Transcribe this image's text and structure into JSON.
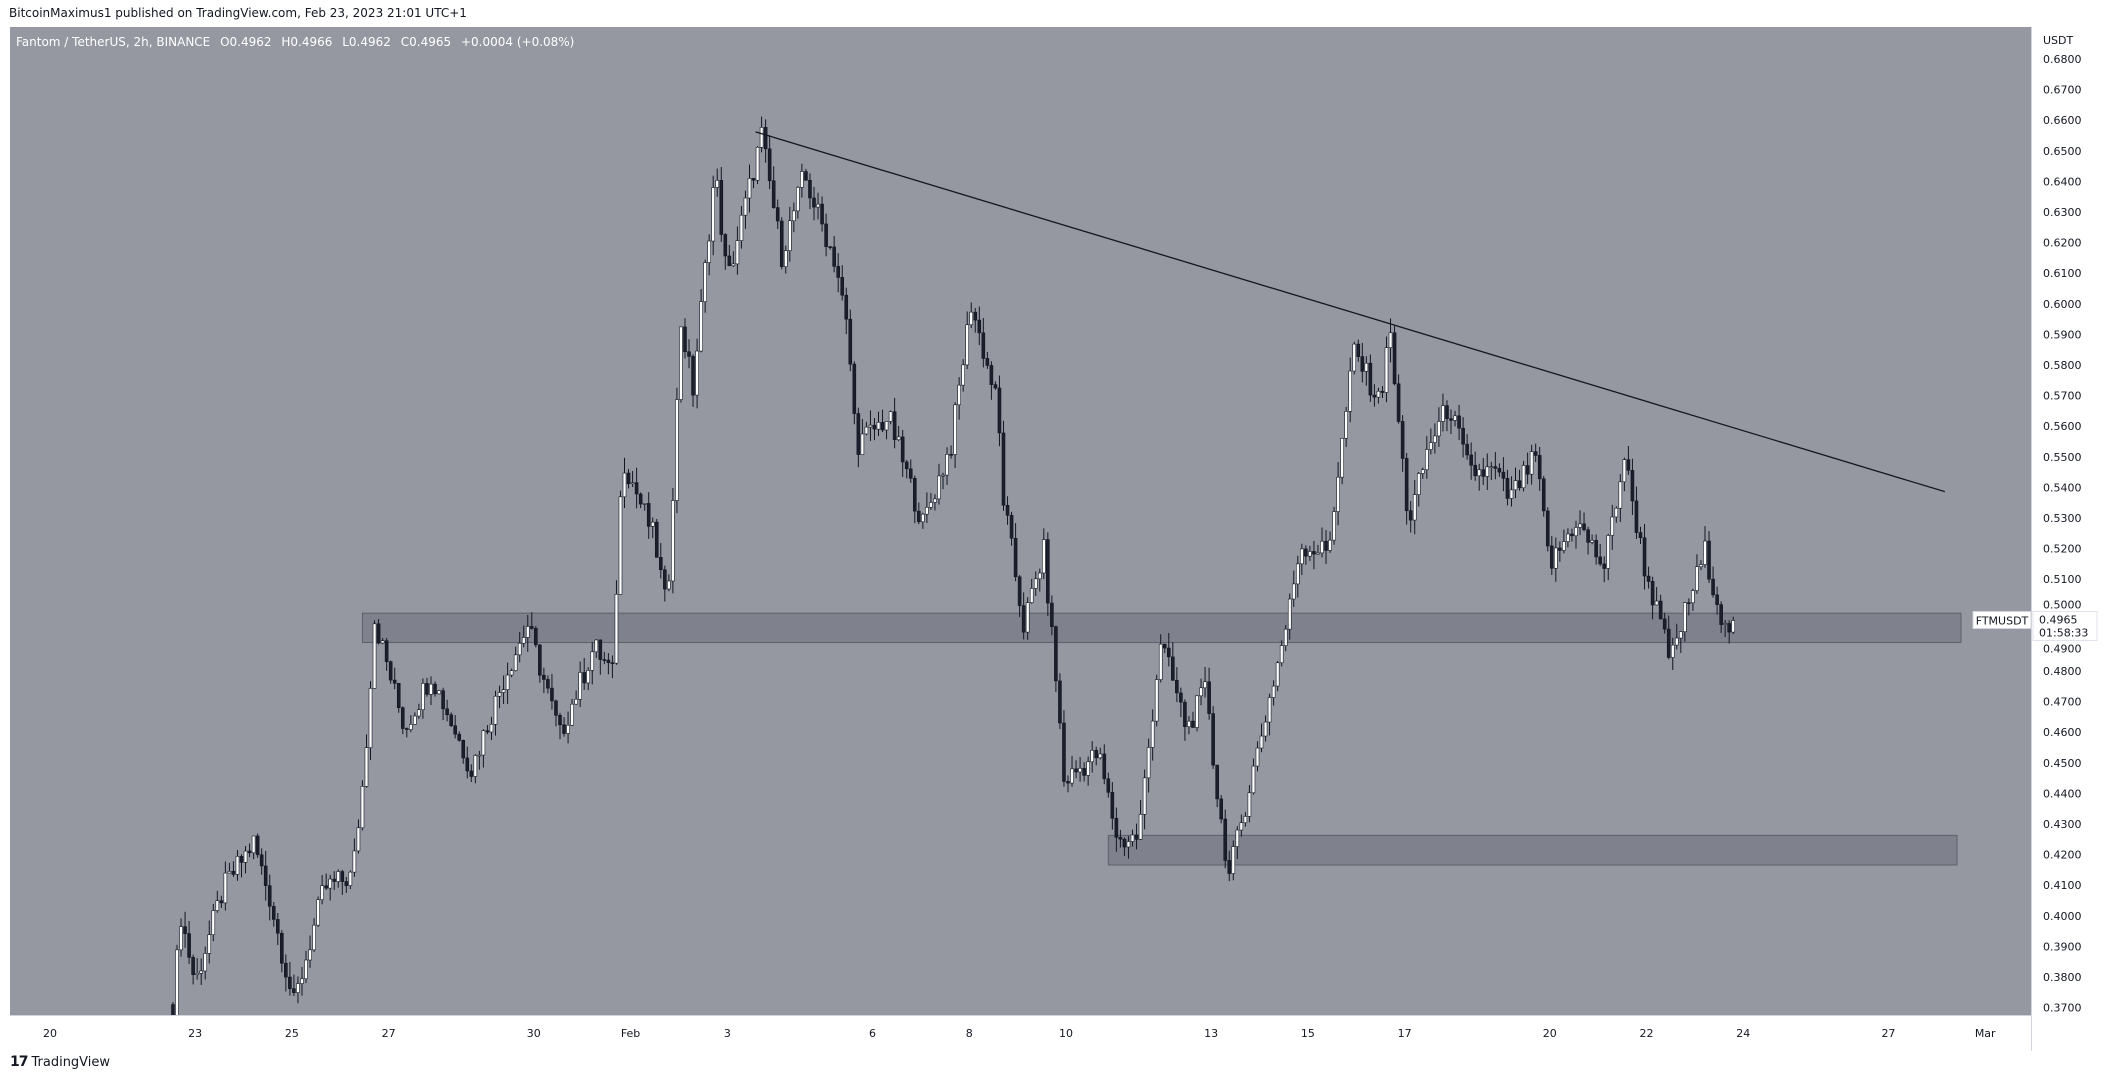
{
  "header": {
    "published": "BitcoinMaximus1 published on TradingView.com, Feb 23, 2023 21:01 UTC+1"
  },
  "legend": {
    "symbol": "Fantom / TetherUS, 2h, BINANCE",
    "o_label": "O",
    "o": "0.4962",
    "h_label": "H",
    "h": "0.4966",
    "l_label": "L",
    "l": "0.4962",
    "c_label": "C",
    "c": "0.4965",
    "change": "+0.0004 (+0.08%)"
  },
  "price_label": {
    "ticker": "FTMUSDT",
    "price": "0.4965",
    "countdown": "01:58:33"
  },
  "footer": {
    "logo_text": "TradingView"
  },
  "colors": {
    "background": "#9598a1",
    "up_fill": "#ffffff",
    "down_fill": "#1b1e2b",
    "candle_border": "#131722",
    "zone": "#787b86",
    "axis_bg": "#ffffff"
  },
  "chart_data": {
    "type": "candlestick",
    "interval": "2h",
    "currency": "USDT",
    "ylim": [
      0.365,
      0.6835
    ],
    "y_ticks": [
      "0.6800",
      "0.6700",
      "0.6600",
      "0.6500",
      "0.6400",
      "0.6300",
      "0.6200",
      "0.6100",
      "0.6000",
      "0.5900",
      "0.5800",
      "0.5700",
      "0.5600",
      "0.5500",
      "0.5400",
      "0.5300",
      "0.5200",
      "0.5100",
      "0.5000",
      "0.4900",
      "0.4800",
      "0.4700",
      "0.4600",
      "0.4500",
      "0.4400",
      "0.4300",
      "0.4200",
      "0.4100",
      "0.4000",
      "0.3900",
      "0.3800",
      "0.3700"
    ],
    "x_ticks": [
      {
        "label": "20",
        "date": "2023-01-20"
      },
      {
        "label": "23",
        "date": "2023-01-23"
      },
      {
        "label": "25",
        "date": "2023-01-25"
      },
      {
        "label": "27",
        "date": "2023-01-27"
      },
      {
        "label": "30",
        "date": "2023-01-30"
      },
      {
        "label": "Feb",
        "date": "2023-02-01"
      },
      {
        "label": "3",
        "date": "2023-02-03"
      },
      {
        "label": "6",
        "date": "2023-02-06"
      },
      {
        "label": "8",
        "date": "2023-02-08"
      },
      {
        "label": "10",
        "date": "2023-02-10"
      },
      {
        "label": "13",
        "date": "2023-02-13"
      },
      {
        "label": "15",
        "date": "2023-02-15"
      },
      {
        "label": "17",
        "date": "2023-02-17"
      },
      {
        "label": "20",
        "date": "2023-02-20"
      },
      {
        "label": "22",
        "date": "2023-02-22"
      },
      {
        "label": "24",
        "date": "2023-02-24"
      },
      {
        "label": "27",
        "date": "2023-02-27"
      },
      {
        "label": "Mar",
        "date": "2023-03-01"
      }
    ],
    "price_path": [
      [
        "2023-01-22T13",
        0.371
      ],
      [
        "2023-01-22T17",
        0.4
      ],
      [
        "2023-01-23T00",
        0.378
      ],
      [
        "2023-01-23T14",
        0.409
      ],
      [
        "2023-01-24T05",
        0.424
      ],
      [
        "2023-01-24T13",
        0.406
      ],
      [
        "2023-01-25T01",
        0.371
      ],
      [
        "2023-01-25T16",
        0.409
      ],
      [
        "2023-01-26T06",
        0.413
      ],
      [
        "2023-01-26T12",
        0.448
      ],
      [
        "2023-01-26T17",
        0.497
      ],
      [
        "2023-01-27T08",
        0.461
      ],
      [
        "2023-01-27T21",
        0.479
      ],
      [
        "2023-01-28T17",
        0.448
      ],
      [
        "2023-01-29T10",
        0.479
      ],
      [
        "2023-01-29T21",
        0.495
      ],
      [
        "2023-01-30T13",
        0.459
      ],
      [
        "2023-01-31T06",
        0.488
      ],
      [
        "2023-01-31T15",
        0.479
      ],
      [
        "2023-01-31T20",
        0.55
      ],
      [
        "2023-02-01T12",
        0.523
      ],
      [
        "2023-02-01T18",
        0.499
      ],
      [
        "2023-02-02T01",
        0.594
      ],
      [
        "2023-02-02T07",
        0.572
      ],
      [
        "2023-02-02T18",
        0.644
      ],
      [
        "2023-02-03T00",
        0.607
      ],
      [
        "2023-02-03T17",
        0.655
      ],
      [
        "2023-02-04T03",
        0.616
      ],
      [
        "2023-02-04T14",
        0.642
      ],
      [
        "2023-02-05T06",
        0.613
      ],
      [
        "2023-02-05T12",
        0.589
      ],
      [
        "2023-02-05T16",
        0.554
      ],
      [
        "2023-02-06T08",
        0.563
      ],
      [
        "2023-02-07T01",
        0.528
      ],
      [
        "2023-02-07T15",
        0.554
      ],
      [
        "2023-02-08T01",
        0.6
      ],
      [
        "2023-02-08T14",
        0.567
      ],
      [
        "2023-02-08T17",
        0.536
      ],
      [
        "2023-02-09T03",
        0.495
      ],
      [
        "2023-02-09T13",
        0.519
      ],
      [
        "2023-02-09T20",
        0.471
      ],
      [
        "2023-02-09T23",
        0.444
      ],
      [
        "2023-02-10T16",
        0.453
      ],
      [
        "2023-02-11T02",
        0.424
      ],
      [
        "2023-02-11T12",
        0.426
      ],
      [
        "2023-02-11T23",
        0.49
      ],
      [
        "2023-02-12T12",
        0.461
      ],
      [
        "2023-02-12T22",
        0.475
      ],
      [
        "2023-02-13T02",
        0.444
      ],
      [
        "2023-02-13T09",
        0.413
      ],
      [
        "2023-02-13T21",
        0.448
      ],
      [
        "2023-02-14T14",
        0.497
      ],
      [
        "2023-02-14T20",
        0.521
      ],
      [
        "2023-02-15T10",
        0.519
      ],
      [
        "2023-02-15T23",
        0.585
      ],
      [
        "2023-02-16T12",
        0.567
      ],
      [
        "2023-02-16T16",
        0.594
      ],
      [
        "2023-02-17T02",
        0.528
      ],
      [
        "2023-02-17T12",
        0.554
      ],
      [
        "2023-02-17T22",
        0.567
      ],
      [
        "2023-02-18T08",
        0.545
      ],
      [
        "2023-02-18T21",
        0.545
      ],
      [
        "2023-02-19T04",
        0.536
      ],
      [
        "2023-02-19T17",
        0.55
      ],
      [
        "2023-02-20T00",
        0.514
      ],
      [
        "2023-02-20T13",
        0.529
      ],
      [
        "2023-02-21T03",
        0.514
      ],
      [
        "2023-02-21T13",
        0.55
      ],
      [
        "2023-02-21T23",
        0.514
      ],
      [
        "2023-02-22T12",
        0.483
      ],
      [
        "2023-02-22T19",
        0.499
      ],
      [
        "2023-02-23T05",
        0.519
      ],
      [
        "2023-02-23T15",
        0.493
      ],
      [
        "2023-02-23T20",
        0.4965
      ]
    ],
    "trendline": {
      "start": [
        "2023-02-03T14",
        0.6562
      ],
      "end": [
        "2023-02-28T04",
        0.5386
      ]
    },
    "zones": [
      {
        "start": "2023-01-26T11",
        "end": "2023-02-28T12",
        "top": 0.4989,
        "bottom": 0.4893
      },
      {
        "start": "2023-02-10T21",
        "end": "2023-02-28T10",
        "top": 0.4263,
        "bottom": 0.4166
      }
    ],
    "last_price": 0.4965
  }
}
